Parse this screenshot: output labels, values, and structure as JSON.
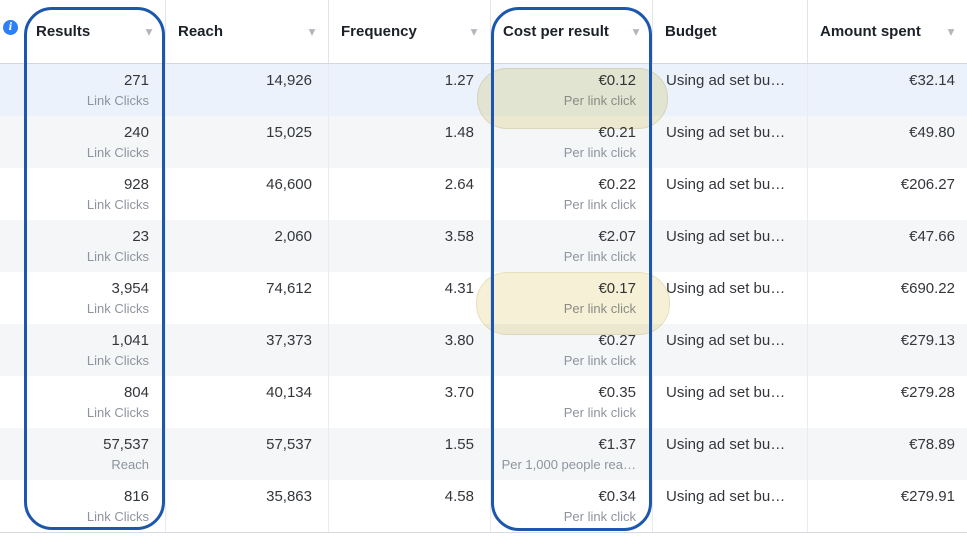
{
  "icons": {
    "sort_caret": "▾",
    "info": "i"
  },
  "colors": {
    "annotation_blue": "#1d57ad",
    "highlight_yellow": "#f6f1d6",
    "info_badge_blue": "#2d7ff9",
    "selected_row_bg": "#ebf2fb",
    "alt_row_bg": "#f5f6f7"
  },
  "table": {
    "columns": [
      {
        "label": "Results",
        "sortable": true
      },
      {
        "label": "Reach",
        "sortable": true
      },
      {
        "label": "Frequency",
        "sortable": true
      },
      {
        "label": "Cost per result",
        "sortable": true
      },
      {
        "label": "Budget",
        "sortable": false
      },
      {
        "label": "Amount spent",
        "sortable": true
      }
    ],
    "rows": [
      {
        "results": "271",
        "results_sub": "Link Clicks",
        "reach": "14,926",
        "frequency": "1.27",
        "cost": "€0.12",
        "cost_sub": "Per link click",
        "budget": "Using ad set bu…",
        "spent": "€32.14"
      },
      {
        "results": "240",
        "results_sub": "Link Clicks",
        "reach": "15,025",
        "frequency": "1.48",
        "cost": "€0.21",
        "cost_sub": "Per link click",
        "budget": "Using ad set bu…",
        "spent": "€49.80"
      },
      {
        "results": "928",
        "results_sub": "Link Clicks",
        "reach": "46,600",
        "frequency": "2.64",
        "cost": "€0.22",
        "cost_sub": "Per link click",
        "budget": "Using ad set bu…",
        "spent": "€206.27"
      },
      {
        "results": "23",
        "results_sub": "Link Clicks",
        "reach": "2,060",
        "frequency": "3.58",
        "cost": "€2.07",
        "cost_sub": "Per link click",
        "budget": "Using ad set bu…",
        "spent": "€47.66"
      },
      {
        "results": "3,954",
        "results_sub": "Link Clicks",
        "reach": "74,612",
        "frequency": "4.31",
        "cost": "€0.17",
        "cost_sub": "Per link click",
        "budget": "Using ad set bu…",
        "spent": "€690.22"
      },
      {
        "results": "1,041",
        "results_sub": "Link Clicks",
        "reach": "37,373",
        "frequency": "3.80",
        "cost": "€0.27",
        "cost_sub": "Per link click",
        "budget": "Using ad set bu…",
        "spent": "€279.13"
      },
      {
        "results": "804",
        "results_sub": "Link Clicks",
        "reach": "40,134",
        "frequency": "3.70",
        "cost": "€0.35",
        "cost_sub": "Per link click",
        "budget": "Using ad set bu…",
        "spent": "€279.28"
      },
      {
        "results": "57,537",
        "results_sub": "Reach",
        "reach": "57,537",
        "frequency": "1.55",
        "cost": "€1.37",
        "cost_sub": "Per 1,000 people rea…",
        "budget": "Using ad set bu…",
        "spent": "€78.89"
      },
      {
        "results": "816",
        "results_sub": "Link Clicks",
        "reach": "35,863",
        "frequency": "4.58",
        "cost": "€0.34",
        "cost_sub": "Per link click",
        "budget": "Using ad set bu…",
        "spent": "€279.91"
      }
    ]
  }
}
